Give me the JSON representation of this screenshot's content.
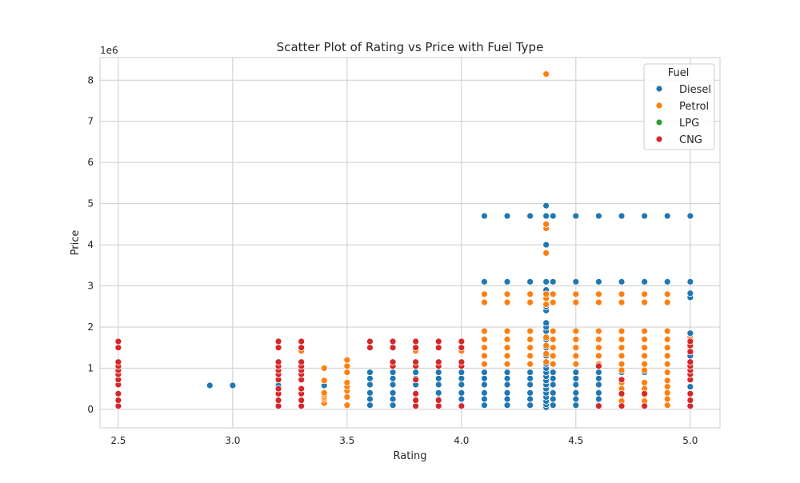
{
  "colors": {
    "background": "#ffffff",
    "plot_background": "#ffffff",
    "grid": "#cccccc",
    "axes_edge": "#cccccc",
    "text": "#262626",
    "marker_edge": "#ffffff",
    "Diesel": "#1f77b4",
    "Petrol": "#ff7f0e",
    "LPG": "#2ca02c",
    "CNG": "#d62728"
  },
  "chart_data": {
    "type": "scatter",
    "title": "Scatter Plot of Rating vs Price with Fuel Type",
    "xlabel": "Rating",
    "ylabel": "Price",
    "y_offset_text": "1e6",
    "xlim": [
      2.42,
      5.13
    ],
    "ylim": [
      -0.45,
      8.55
    ],
    "xticks": [
      2.5,
      3.0,
      3.5,
      4.0,
      4.5,
      5.0
    ],
    "xtick_labels": [
      "2.5",
      "3.0",
      "3.5",
      "4.0",
      "4.5",
      "5.0"
    ],
    "yticks": [
      0,
      1,
      2,
      3,
      4,
      5,
      6,
      7,
      8
    ],
    "ytick_labels": [
      "0",
      "1",
      "2",
      "3",
      "4",
      "5",
      "6",
      "7",
      "8"
    ],
    "grid": true,
    "legend": {
      "title": "Fuel",
      "placement": "top-right",
      "entries": [
        "Diesel",
        "Petrol",
        "LPG",
        "CNG"
      ]
    },
    "y_unit_note": "y values in units of 1e6",
    "series": [
      {
        "name": "Diesel",
        "points": [
          [
            2.9,
            0.58
          ],
          [
            3.0,
            0.58
          ],
          [
            3.2,
            0.58
          ],
          [
            3.4,
            0.58
          ],
          [
            3.6,
            0.1
          ],
          [
            3.6,
            0.25
          ],
          [
            3.6,
            0.4
          ],
          [
            3.6,
            0.6
          ],
          [
            3.6,
            0.75
          ],
          [
            3.6,
            0.9
          ],
          [
            3.7,
            0.1
          ],
          [
            3.7,
            0.25
          ],
          [
            3.7,
            0.4
          ],
          [
            3.7,
            0.6
          ],
          [
            3.7,
            0.75
          ],
          [
            3.7,
            0.9
          ],
          [
            3.8,
            0.1
          ],
          [
            3.8,
            0.25
          ],
          [
            3.8,
            0.4
          ],
          [
            3.8,
            0.6
          ],
          [
            3.8,
            0.75
          ],
          [
            3.8,
            0.9
          ],
          [
            3.9,
            0.1
          ],
          [
            3.9,
            0.25
          ],
          [
            3.9,
            0.4
          ],
          [
            3.9,
            0.6
          ],
          [
            3.9,
            0.75
          ],
          [
            3.9,
            0.9
          ],
          [
            4.0,
            0.1
          ],
          [
            4.0,
            0.25
          ],
          [
            4.0,
            0.4
          ],
          [
            4.0,
            0.6
          ],
          [
            4.0,
            0.75
          ],
          [
            4.0,
            0.9
          ],
          [
            4.1,
            0.1
          ],
          [
            4.1,
            0.25
          ],
          [
            4.1,
            0.4
          ],
          [
            4.1,
            0.6
          ],
          [
            4.1,
            0.75
          ],
          [
            4.1,
            0.9
          ],
          [
            4.1,
            3.1
          ],
          [
            4.1,
            4.7
          ],
          [
            4.2,
            0.1
          ],
          [
            4.2,
            0.25
          ],
          [
            4.2,
            0.4
          ],
          [
            4.2,
            0.6
          ],
          [
            4.2,
            0.75
          ],
          [
            4.2,
            0.9
          ],
          [
            4.2,
            3.1
          ],
          [
            4.2,
            4.7
          ],
          [
            4.3,
            0.1
          ],
          [
            4.3,
            0.25
          ],
          [
            4.3,
            0.4
          ],
          [
            4.3,
            0.6
          ],
          [
            4.3,
            0.75
          ],
          [
            4.3,
            0.9
          ],
          [
            4.3,
            3.1
          ],
          [
            4.3,
            4.7
          ],
          [
            4.37,
            0.05
          ],
          [
            4.37,
            0.12
          ],
          [
            4.37,
            0.2
          ],
          [
            4.37,
            0.3
          ],
          [
            4.37,
            0.4
          ],
          [
            4.37,
            0.5
          ],
          [
            4.37,
            0.6
          ],
          [
            4.37,
            0.7
          ],
          [
            4.37,
            0.8
          ],
          [
            4.37,
            0.9
          ],
          [
            4.37,
            1.0
          ],
          [
            4.37,
            1.1
          ],
          [
            4.37,
            1.3
          ],
          [
            4.37,
            1.5
          ],
          [
            4.37,
            1.7
          ],
          [
            4.37,
            1.9
          ],
          [
            4.37,
            2.0
          ],
          [
            4.37,
            2.1
          ],
          [
            4.37,
            2.4
          ],
          [
            4.37,
            2.5
          ],
          [
            4.37,
            2.9
          ],
          [
            4.37,
            3.1
          ],
          [
            4.37,
            4.0
          ],
          [
            4.37,
            4.7
          ],
          [
            4.37,
            4.95
          ],
          [
            4.4,
            0.1
          ],
          [
            4.4,
            0.25
          ],
          [
            4.4,
            0.4
          ],
          [
            4.4,
            0.6
          ],
          [
            4.4,
            0.75
          ],
          [
            4.4,
            0.9
          ],
          [
            4.4,
            3.1
          ],
          [
            4.4,
            4.7
          ],
          [
            4.5,
            0.1
          ],
          [
            4.5,
            0.25
          ],
          [
            4.5,
            0.4
          ],
          [
            4.5,
            0.6
          ],
          [
            4.5,
            0.75
          ],
          [
            4.5,
            0.9
          ],
          [
            4.5,
            3.1
          ],
          [
            4.5,
            4.7
          ],
          [
            4.6,
            0.1
          ],
          [
            4.6,
            0.25
          ],
          [
            4.6,
            0.4
          ],
          [
            4.6,
            0.6
          ],
          [
            4.6,
            0.75
          ],
          [
            4.6,
            0.9
          ],
          [
            4.6,
            3.1
          ],
          [
            4.6,
            4.7
          ],
          [
            4.7,
            0.9
          ],
          [
            4.7,
            3.1
          ],
          [
            4.7,
            4.7
          ],
          [
            4.8,
            0.9
          ],
          [
            4.8,
            3.1
          ],
          [
            4.8,
            4.7
          ],
          [
            4.9,
            3.1
          ],
          [
            4.9,
            4.7
          ],
          [
            5.0,
            0.55
          ],
          [
            5.0,
            1.3
          ],
          [
            5.0,
            1.6
          ],
          [
            5.0,
            1.75
          ],
          [
            5.0,
            1.85
          ],
          [
            5.0,
            2.72
          ],
          [
            5.0,
            2.82
          ],
          [
            5.0,
            3.1
          ],
          [
            5.0,
            4.7
          ]
        ]
      },
      {
        "name": "Petrol",
        "points": [
          [
            3.3,
            1.42
          ],
          [
            3.4,
            0.15
          ],
          [
            3.4,
            0.25
          ],
          [
            3.4,
            0.3
          ],
          [
            3.4,
            0.35
          ],
          [
            3.4,
            0.4
          ],
          [
            3.4,
            0.7
          ],
          [
            3.4,
            1.0
          ],
          [
            3.5,
            0.1
          ],
          [
            3.5,
            0.3
          ],
          [
            3.5,
            0.45
          ],
          [
            3.5,
            0.55
          ],
          [
            3.5,
            0.65
          ],
          [
            3.5,
            0.9
          ],
          [
            3.5,
            1.05
          ],
          [
            3.5,
            1.2
          ],
          [
            3.8,
            1.42
          ],
          [
            4.0,
            1.42
          ],
          [
            4.1,
            1.1
          ],
          [
            4.1,
            1.3
          ],
          [
            4.1,
            1.5
          ],
          [
            4.1,
            1.7
          ],
          [
            4.1,
            1.9
          ],
          [
            4.1,
            2.6
          ],
          [
            4.1,
            2.8
          ],
          [
            4.2,
            1.1
          ],
          [
            4.2,
            1.3
          ],
          [
            4.2,
            1.5
          ],
          [
            4.2,
            1.7
          ],
          [
            4.2,
            1.9
          ],
          [
            4.2,
            2.6
          ],
          [
            4.2,
            2.8
          ],
          [
            4.3,
            1.1
          ],
          [
            4.3,
            1.3
          ],
          [
            4.3,
            1.5
          ],
          [
            4.3,
            1.7
          ],
          [
            4.3,
            1.9
          ],
          [
            4.3,
            2.6
          ],
          [
            4.3,
            2.8
          ],
          [
            4.37,
            1.15
          ],
          [
            4.37,
            1.35
          ],
          [
            4.37,
            1.55
          ],
          [
            4.37,
            1.75
          ],
          [
            4.37,
            2.55
          ],
          [
            4.37,
            2.7
          ],
          [
            4.37,
            2.8
          ],
          [
            4.37,
            3.8
          ],
          [
            4.37,
            4.4
          ],
          [
            4.37,
            4.5
          ],
          [
            4.37,
            8.15
          ],
          [
            4.4,
            1.1
          ],
          [
            4.4,
            1.3
          ],
          [
            4.4,
            1.5
          ],
          [
            4.4,
            1.7
          ],
          [
            4.4,
            1.9
          ],
          [
            4.4,
            2.6
          ],
          [
            4.4,
            2.8
          ],
          [
            4.5,
            1.1
          ],
          [
            4.5,
            1.3
          ],
          [
            4.5,
            1.5
          ],
          [
            4.5,
            1.7
          ],
          [
            4.5,
            1.9
          ],
          [
            4.5,
            2.6
          ],
          [
            4.5,
            2.8
          ],
          [
            4.6,
            1.1
          ],
          [
            4.6,
            1.3
          ],
          [
            4.6,
            1.5
          ],
          [
            4.6,
            1.7
          ],
          [
            4.6,
            1.9
          ],
          [
            4.6,
            2.6
          ],
          [
            4.6,
            2.8
          ],
          [
            4.7,
            0.2
          ],
          [
            4.7,
            0.35
          ],
          [
            4.7,
            0.5
          ],
          [
            4.7,
            0.65
          ],
          [
            4.7,
            0.95
          ],
          [
            4.7,
            1.1
          ],
          [
            4.7,
            1.3
          ],
          [
            4.7,
            1.5
          ],
          [
            4.7,
            1.7
          ],
          [
            4.7,
            1.9
          ],
          [
            4.7,
            2.6
          ],
          [
            4.7,
            2.8
          ],
          [
            4.8,
            0.2
          ],
          [
            4.8,
            0.35
          ],
          [
            4.8,
            0.5
          ],
          [
            4.8,
            0.65
          ],
          [
            4.8,
            0.95
          ],
          [
            4.8,
            1.1
          ],
          [
            4.8,
            1.3
          ],
          [
            4.8,
            1.5
          ],
          [
            4.8,
            1.7
          ],
          [
            4.8,
            1.9
          ],
          [
            4.8,
            2.6
          ],
          [
            4.8,
            2.8
          ],
          [
            4.9,
            0.1
          ],
          [
            4.9,
            0.25
          ],
          [
            4.9,
            0.4
          ],
          [
            4.9,
            0.55
          ],
          [
            4.9,
            0.7
          ],
          [
            4.9,
            0.9
          ],
          [
            4.9,
            1.1
          ],
          [
            4.9,
            1.3
          ],
          [
            4.9,
            1.5
          ],
          [
            4.9,
            1.7
          ],
          [
            4.9,
            1.9
          ],
          [
            4.9,
            2.6
          ],
          [
            4.9,
            2.8
          ],
          [
            5.0,
            1.5
          ],
          [
            5.0,
            1.7
          ]
        ]
      },
      {
        "name": "LPG",
        "points": []
      },
      {
        "name": "CNG",
        "points": [
          [
            2.5,
            0.08
          ],
          [
            2.5,
            0.22
          ],
          [
            2.5,
            0.38
          ],
          [
            2.5,
            0.6
          ],
          [
            2.5,
            0.72
          ],
          [
            2.5,
            0.85
          ],
          [
            2.5,
            0.95
          ],
          [
            2.5,
            1.05
          ],
          [
            2.5,
            1.15
          ],
          [
            2.5,
            1.5
          ],
          [
            2.5,
            1.65
          ],
          [
            3.2,
            0.08
          ],
          [
            3.2,
            0.22
          ],
          [
            3.2,
            0.38
          ],
          [
            3.2,
            0.5
          ],
          [
            3.2,
            0.72
          ],
          [
            3.2,
            0.85
          ],
          [
            3.2,
            0.95
          ],
          [
            3.2,
            1.05
          ],
          [
            3.2,
            1.15
          ],
          [
            3.2,
            1.5
          ],
          [
            3.2,
            1.65
          ],
          [
            3.3,
            0.08
          ],
          [
            3.3,
            0.22
          ],
          [
            3.3,
            0.38
          ],
          [
            3.3,
            0.5
          ],
          [
            3.3,
            0.72
          ],
          [
            3.3,
            0.85
          ],
          [
            3.3,
            0.95
          ],
          [
            3.3,
            1.05
          ],
          [
            3.3,
            1.15
          ],
          [
            3.3,
            1.5
          ],
          [
            3.3,
            1.65
          ],
          [
            3.6,
            1.5
          ],
          [
            3.6,
            1.65
          ],
          [
            3.7,
            1.05
          ],
          [
            3.7,
            1.15
          ],
          [
            3.7,
            1.5
          ],
          [
            3.7,
            1.65
          ],
          [
            3.8,
            0.08
          ],
          [
            3.8,
            0.22
          ],
          [
            3.8,
            0.38
          ],
          [
            3.8,
            0.72
          ],
          [
            3.8,
            1.05
          ],
          [
            3.8,
            1.15
          ],
          [
            3.8,
            1.5
          ],
          [
            3.8,
            1.65
          ],
          [
            3.9,
            0.08
          ],
          [
            3.9,
            0.22
          ],
          [
            3.9,
            1.05
          ],
          [
            3.9,
            1.15
          ],
          [
            3.9,
            1.5
          ],
          [
            3.9,
            1.65
          ],
          [
            4.0,
            0.08
          ],
          [
            4.0,
            1.05
          ],
          [
            4.0,
            1.15
          ],
          [
            4.0,
            1.5
          ],
          [
            4.0,
            1.65
          ],
          [
            4.6,
            0.08
          ],
          [
            4.6,
            1.05
          ],
          [
            4.7,
            0.08
          ],
          [
            4.7,
            0.38
          ],
          [
            4.7,
            0.72
          ],
          [
            4.8,
            0.08
          ],
          [
            4.8,
            0.38
          ],
          [
            5.0,
            0.08
          ],
          [
            5.0,
            0.22
          ],
          [
            5.0,
            0.38
          ],
          [
            5.0,
            0.72
          ],
          [
            5.0,
            0.85
          ],
          [
            5.0,
            0.95
          ],
          [
            5.0,
            1.05
          ],
          [
            5.0,
            1.15
          ],
          [
            5.0,
            1.4
          ],
          [
            5.0,
            1.55
          ],
          [
            5.0,
            1.65
          ]
        ]
      }
    ]
  }
}
